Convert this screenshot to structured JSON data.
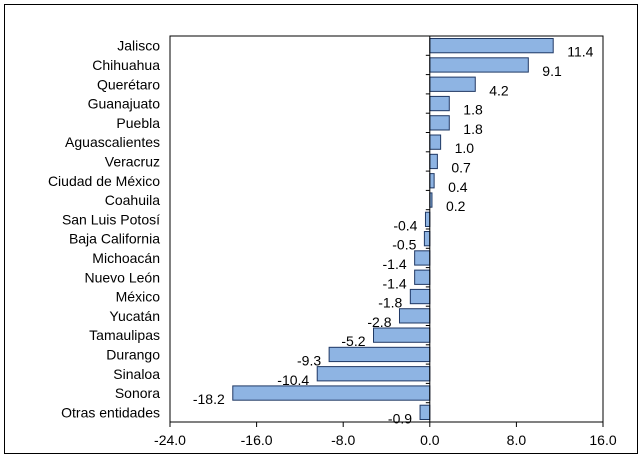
{
  "chart_data": {
    "type": "bar",
    "orientation": "horizontal",
    "categories": [
      "Jalisco",
      "Chihuahua",
      "Querétaro",
      "Guanajuato",
      "Puebla",
      "Aguascalientes",
      "Veracruz",
      "Ciudad de México",
      "Coahuila",
      "San Luis Potosí",
      "Baja California",
      "Michoacán",
      "Nuevo León",
      "México",
      "Yucatán",
      "Tamaulipas",
      "Durango",
      "Sinaloa",
      "Sonora",
      "Otras entidades"
    ],
    "values": [
      11.4,
      9.1,
      4.2,
      1.8,
      1.8,
      1.0,
      0.7,
      0.4,
      0.2,
      -0.4,
      -0.5,
      -1.4,
      -1.4,
      -1.8,
      -2.8,
      -5.2,
      -9.3,
      -10.4,
      -18.2,
      -0.9
    ],
    "value_labels": [
      "11.4",
      "9.1",
      "4.2",
      "1.8",
      "1.8",
      "1.0",
      "0.7",
      "0.4",
      "0.2",
      "-0.4",
      "-0.5",
      "-1.4",
      "-1.4",
      "-1.8",
      "-2.8",
      "-5.2",
      "-9.3",
      "-10.4",
      "-18.2",
      "-0.9"
    ],
    "xlim": [
      -24,
      16
    ],
    "xticks": [
      -24,
      -16,
      -8,
      0,
      8,
      16
    ],
    "xtick_labels": [
      "-24.0",
      "-16.0",
      "-8.0",
      "0.0",
      "8.0",
      "16.0"
    ],
    "grid": false,
    "legend": "none",
    "colors": {
      "bar_fill": "#8EB4E3",
      "bar_stroke": "#1F3864",
      "axis": "#000000"
    }
  }
}
